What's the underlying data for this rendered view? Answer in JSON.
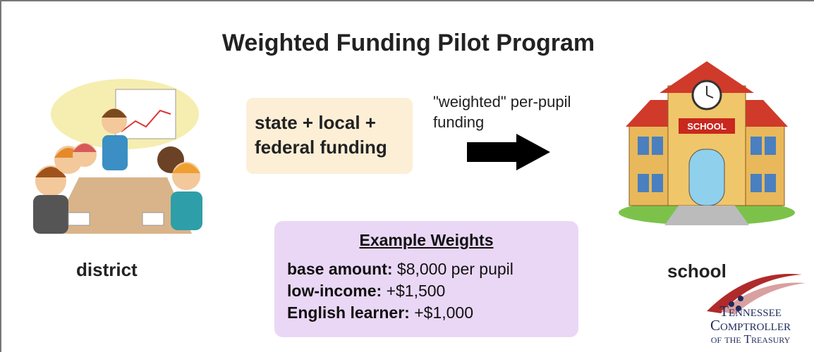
{
  "title": "Weighted Funding Pilot Program",
  "funding_box": {
    "lines": [
      "state + local +",
      "federal funding"
    ]
  },
  "arrow_label": "\"weighted\" per-pupil funding",
  "district": {
    "label": "district"
  },
  "school": {
    "label": "school",
    "sign": "SCHOOL"
  },
  "weights": {
    "title": "Example Weights",
    "items": [
      {
        "label": "base amount:",
        "value": "$8,000 per pupil"
      },
      {
        "label": "low-income:",
        "value": "+$1,500"
      },
      {
        "label": "English learner:",
        "value": "+$1,000"
      }
    ]
  },
  "logo": {
    "lines": [
      "Tennessee",
      "Comptroller",
      "of the Treasury"
    ]
  }
}
